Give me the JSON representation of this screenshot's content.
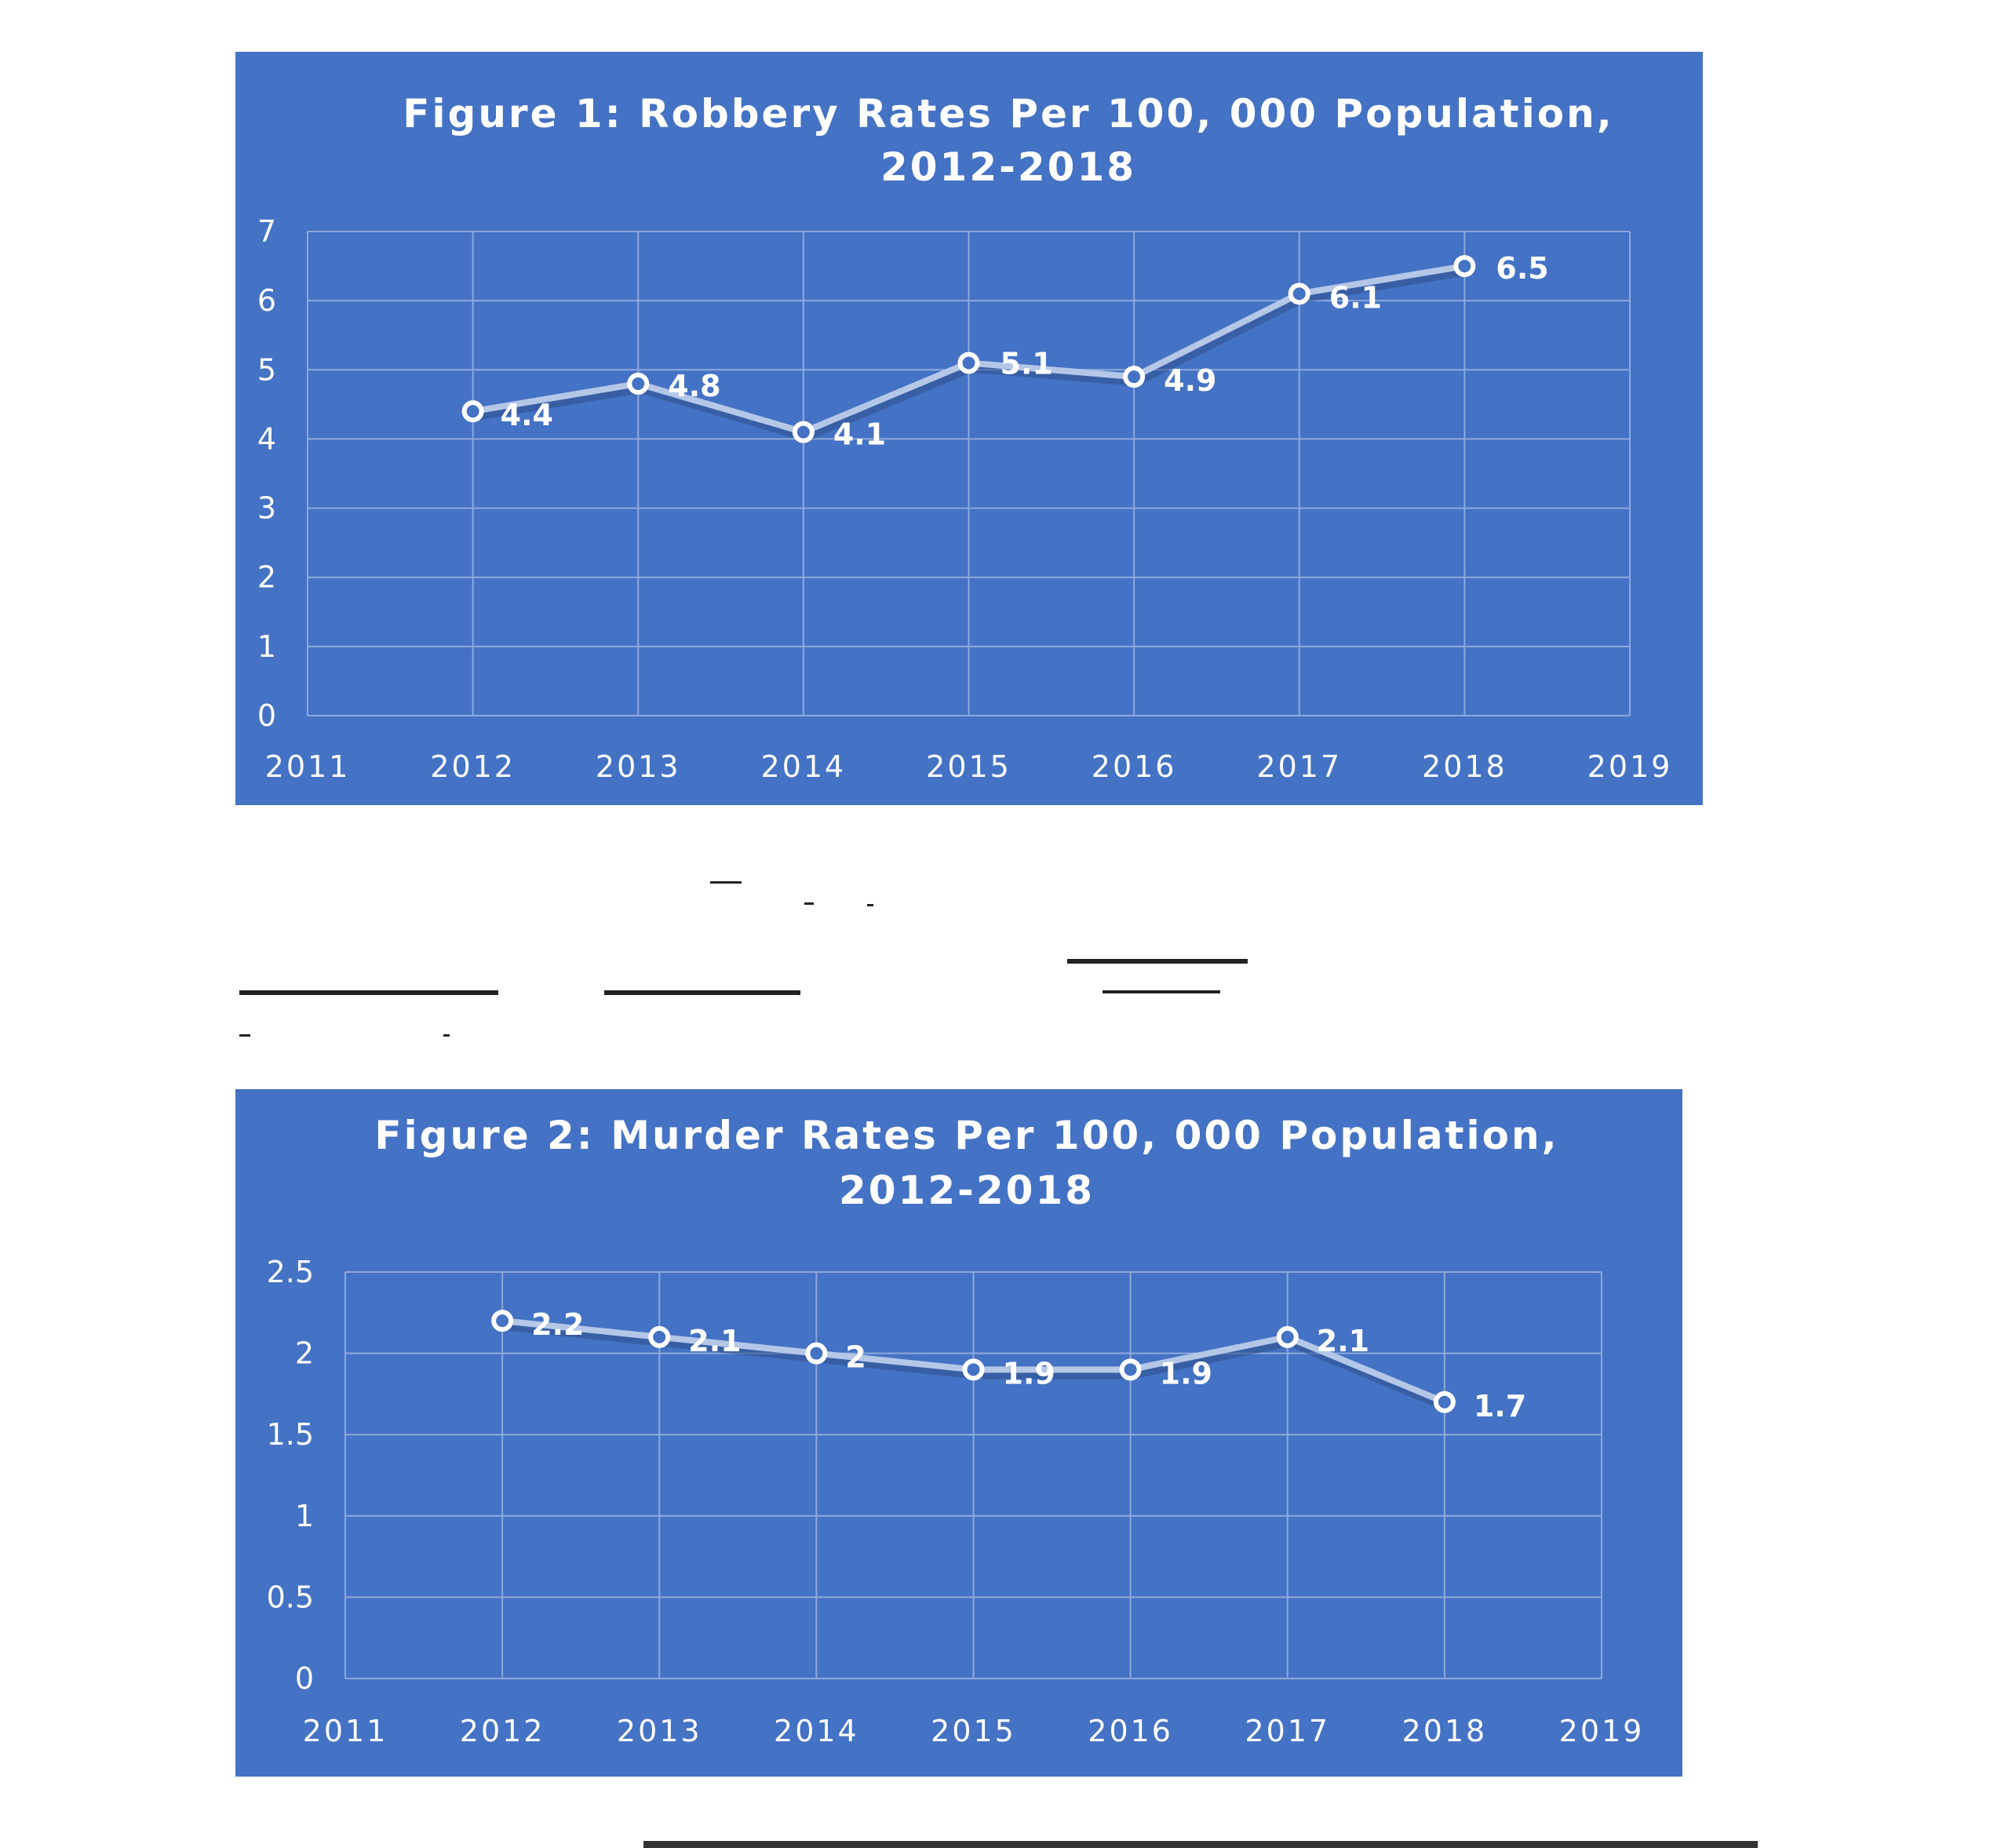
{
  "chart_data": [
    {
      "type": "line",
      "title": "Figure 1: Robbery Rates Per 100, 000 Population, 2012-2018",
      "title_lines": [
        "Figure 1: Robbery Rates Per 100, 000 Population,",
        "2012-2018"
      ],
      "x": [
        2012,
        2013,
        2014,
        2015,
        2016,
        2017,
        2018
      ],
      "values": [
        4.4,
        4.8,
        4.1,
        5.1,
        4.9,
        6.1,
        6.5
      ],
      "data_labels": [
        "4.4",
        "4.8",
        "4.1",
        "5.1",
        "4.9",
        "6.1",
        "6.5"
      ],
      "xlim": [
        2011,
        2019
      ],
      "ylim": [
        0,
        7
      ],
      "x_ticks": [
        "2011",
        "2012",
        "2013",
        "2014",
        "2015",
        "2016",
        "2017",
        "2018",
        "2019"
      ],
      "y_ticks": [
        "0",
        "1",
        "2",
        "3",
        "4",
        "5",
        "6",
        "7"
      ],
      "xlabel": "",
      "ylabel": "",
      "grid": true,
      "colors": {
        "background": "#4472C4",
        "line": "#B4C7E7",
        "grid": "#8EA9DB",
        "text": "#FFFFFF"
      }
    },
    {
      "type": "line",
      "title": "Figure 2: Murder Rates Per 100, 000 Population, 2012-2018",
      "title_lines": [
        "Figure 2: Murder Rates Per 100, 000 Population,",
        "2012-2018"
      ],
      "x": [
        2012,
        2013,
        2014,
        2015,
        2016,
        2017,
        2018
      ],
      "values": [
        2.2,
        2.1,
        2.0,
        1.9,
        1.9,
        2.1,
        1.7
      ],
      "data_labels": [
        "2.2",
        "2.1",
        "2",
        "1.9",
        "1.9",
        "2.1",
        "1.7"
      ],
      "xlim": [
        2011,
        2019
      ],
      "ylim": [
        0,
        2.5
      ],
      "x_ticks": [
        "2011",
        "2012",
        "2013",
        "2014",
        "2015",
        "2016",
        "2017",
        "2018",
        "2019"
      ],
      "y_ticks": [
        "0",
        "0.5",
        "1",
        "1.5",
        "2",
        "2.5"
      ],
      "xlabel": "",
      "ylabel": "",
      "grid": true,
      "colors": {
        "background": "#4472C4",
        "line": "#B4C7E7",
        "grid": "#8EA9DB",
        "text": "#FFFFFF"
      }
    }
  ]
}
